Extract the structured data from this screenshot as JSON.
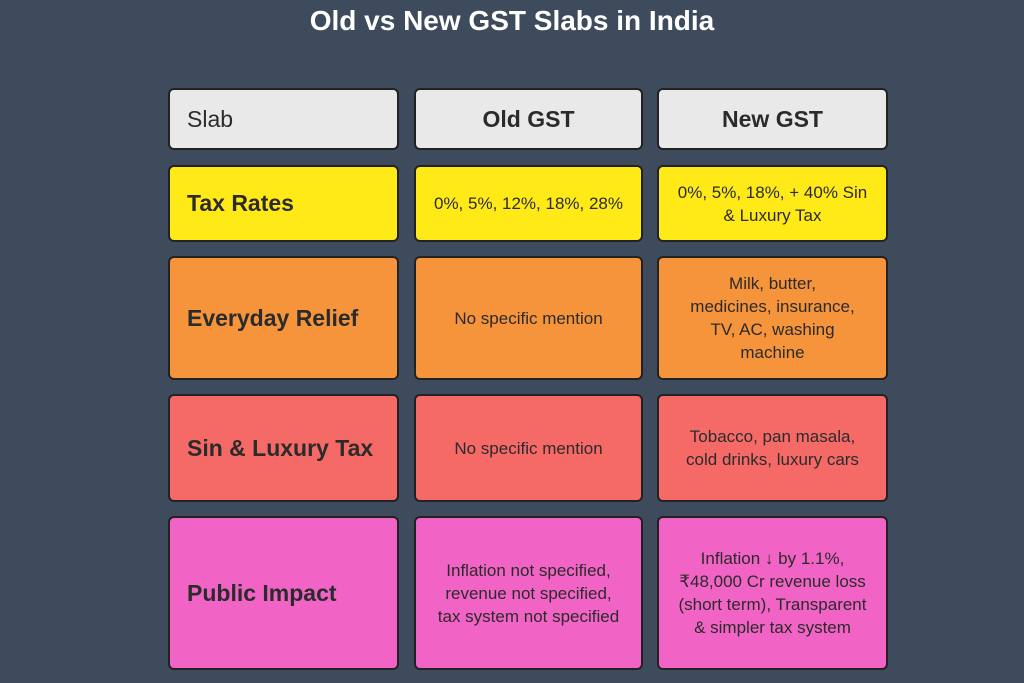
{
  "title": "Old vs New GST Slabs in India",
  "colors": {
    "background": "#3d4b5c",
    "header": "#e9e9e9",
    "tax_rates": "#ffea18",
    "everyday_relief": "#f5943a",
    "sin_luxury": "#f56a67",
    "public_impact": "#f263c6"
  },
  "table": {
    "headers": [
      "Slab",
      "Old GST",
      "New GST"
    ],
    "rows": [
      {
        "slab": "Tax Rates",
        "old": "0%, 5%, 12%, 18%, 28%",
        "new": "0%, 5%, 18%, + 40% Sin & Luxury Tax"
      },
      {
        "slab": "Everyday Relief",
        "old": "No specific mention",
        "new": "Milk, butter, medicines, insurance, TV, AC, washing machine"
      },
      {
        "slab": "Sin & Luxury Tax",
        "old": "No specific mention",
        "new": "Tobacco, pan masala, cold drinks, luxury cars"
      },
      {
        "slab": "Public Impact",
        "old": "Inflation not specified, revenue not specified, tax system not specified",
        "new": "Inflation ↓ by 1.1%, ₹48,000 Cr revenue loss (short term), Transparent & simpler tax system"
      }
    ]
  }
}
